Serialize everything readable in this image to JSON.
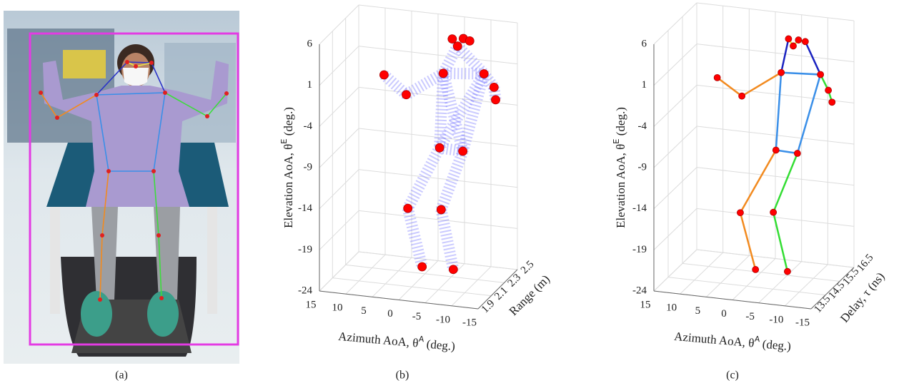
{
  "figure": {
    "panels": [
      {
        "caption": "(a)"
      },
      {
        "caption": "(b)",
        "type": "scatter3d",
        "x_label": {
          "prefix": "Azimuth AoA, θ",
          "sup": "A",
          "suffix": " (deg.)"
        },
        "y_label": {
          "prefix": "Elevation AoA, θ",
          "sup": "E",
          "suffix": " (deg.)"
        },
        "depth_label": "Range (m)",
        "xlim": [
          15,
          -15
        ],
        "xticks": [
          15,
          10,
          5,
          0,
          -5,
          -10,
          -15
        ],
        "ylim": [
          -24,
          6
        ],
        "yticks": [
          6,
          1,
          -4,
          -9,
          -14,
          -19,
          -24
        ],
        "dlim": [
          1.9,
          2.5
        ],
        "dticks": [
          1.9,
          2.1,
          2.3,
          2.5
        ],
        "color": "#ff0000",
        "cloud_color": "#6a6aff",
        "points": {
          "azimuth": [
            -6.4,
            -8.5,
            -9.7,
            -7.4,
            -4.7,
            -12.4,
            6.5,
            2.3,
            -14.3,
            -14.6,
            -4.0,
            -8.4,
            2.0,
            -4.3,
            -0.7,
            -6.6
          ],
          "elevation": [
            5.8,
            6.0,
            5.8,
            5.0,
            1.5,
            2.0,
            0.5,
            -1.6,
            0.5,
            -1.0,
            -7.6,
            -7.7,
            -15.4,
            -15.1,
            -22.3,
            -22.2
          ],
          "depth": [
            2.2,
            2.2,
            2.2,
            2.2,
            2.2,
            2.2,
            2.2,
            2.2,
            2.2,
            2.2,
            2.2,
            2.2,
            2.2,
            2.2,
            2.2,
            2.2
          ]
        }
      },
      {
        "caption": "(c)",
        "type": "skeleton3d",
        "x_label": {
          "prefix": "Azimuth AoA, θ",
          "sup": "A",
          "suffix": " (deg.)"
        },
        "y_label": {
          "prefix": "Elevation AoA, θ",
          "sup": "E",
          "suffix": " (deg.)"
        },
        "depth_label": "Delay, τ (ns)",
        "xlim": [
          15,
          -15
        ],
        "xticks": [
          15,
          10,
          5,
          0,
          -5,
          -10,
          -15
        ],
        "ylim": [
          -24,
          6
        ],
        "yticks": [
          6,
          1,
          -4,
          -9,
          -14,
          -19,
          -24
        ],
        "dlim": [
          13.5,
          16.5
        ],
        "dticks": [
          13.5,
          14.5,
          15.5,
          16.5
        ],
        "color": "#ff0000",
        "points": {
          "azimuth": [
            -6.6,
            -8.5,
            -7.5,
            -9.8,
            -5.2,
            -12.7,
            2.3,
            -14.2,
            7.0,
            -14.9,
            -4.2,
            -8.3,
            2.6,
            -3.7,
            -0.3,
            -6.4
          ],
          "elevation": [
            5.7,
            5.7,
            4.9,
            5.6,
            1.5,
            1.8,
            -1.9,
            0.0,
            0.0,
            -1.4,
            -8.0,
            -8.1,
            -16.1,
            -15.6,
            -22.8,
            -22.6
          ],
          "depth": [
            15,
            15,
            15,
            15,
            15,
            15,
            15,
            15,
            15,
            15,
            15,
            15,
            15,
            15,
            15,
            15
          ]
        }
      }
    ]
  }
}
